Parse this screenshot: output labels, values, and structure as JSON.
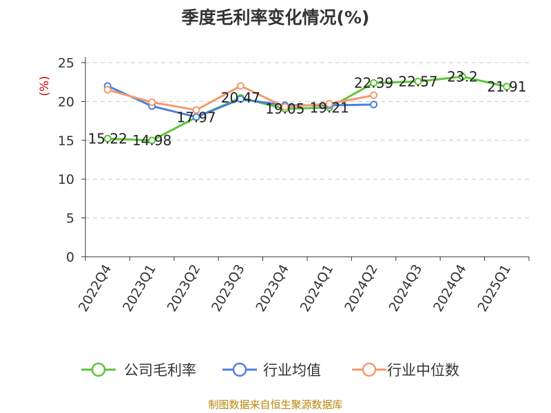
{
  "chart_data": {
    "type": "line",
    "title": "季度毛利率变化情况(%)",
    "ylabel": "(%)",
    "ylim": [
      0,
      25
    ],
    "yticks": [
      0,
      5,
      10,
      15,
      20,
      25
    ],
    "grid": true,
    "legend_position": "bottom",
    "categories": [
      "2022Q4",
      "2023Q1",
      "2023Q2",
      "2023Q3",
      "2023Q4",
      "2024Q1",
      "2024Q2",
      "2024Q3",
      "2024Q4",
      "2025Q1"
    ],
    "series": [
      {
        "name": "公司毛利率",
        "color": "#5cc43a",
        "values": [
          15.22,
          14.98,
          17.97,
          20.47,
          19.05,
          19.21,
          22.39,
          22.57,
          23.2,
          21.91
        ],
        "labels": [
          "15.22",
          "14.98",
          "17.97",
          "20.47",
          "19.05",
          "19.21",
          "22.39",
          "22.57",
          "23.2",
          "21.91"
        ]
      },
      {
        "name": "行业均值",
        "color": "#4a7fdc",
        "values": [
          22.0,
          19.4,
          18.0,
          20.3,
          19.5,
          19.5,
          19.6,
          null,
          null,
          null
        ]
      },
      {
        "name": "行业中位数",
        "color": "#f39a6b",
        "values": [
          21.5,
          19.9,
          18.9,
          22.0,
          19.3,
          19.7,
          20.8,
          null,
          null,
          null
        ]
      }
    ],
    "source": "制图数据来自恒生聚源数据库"
  }
}
